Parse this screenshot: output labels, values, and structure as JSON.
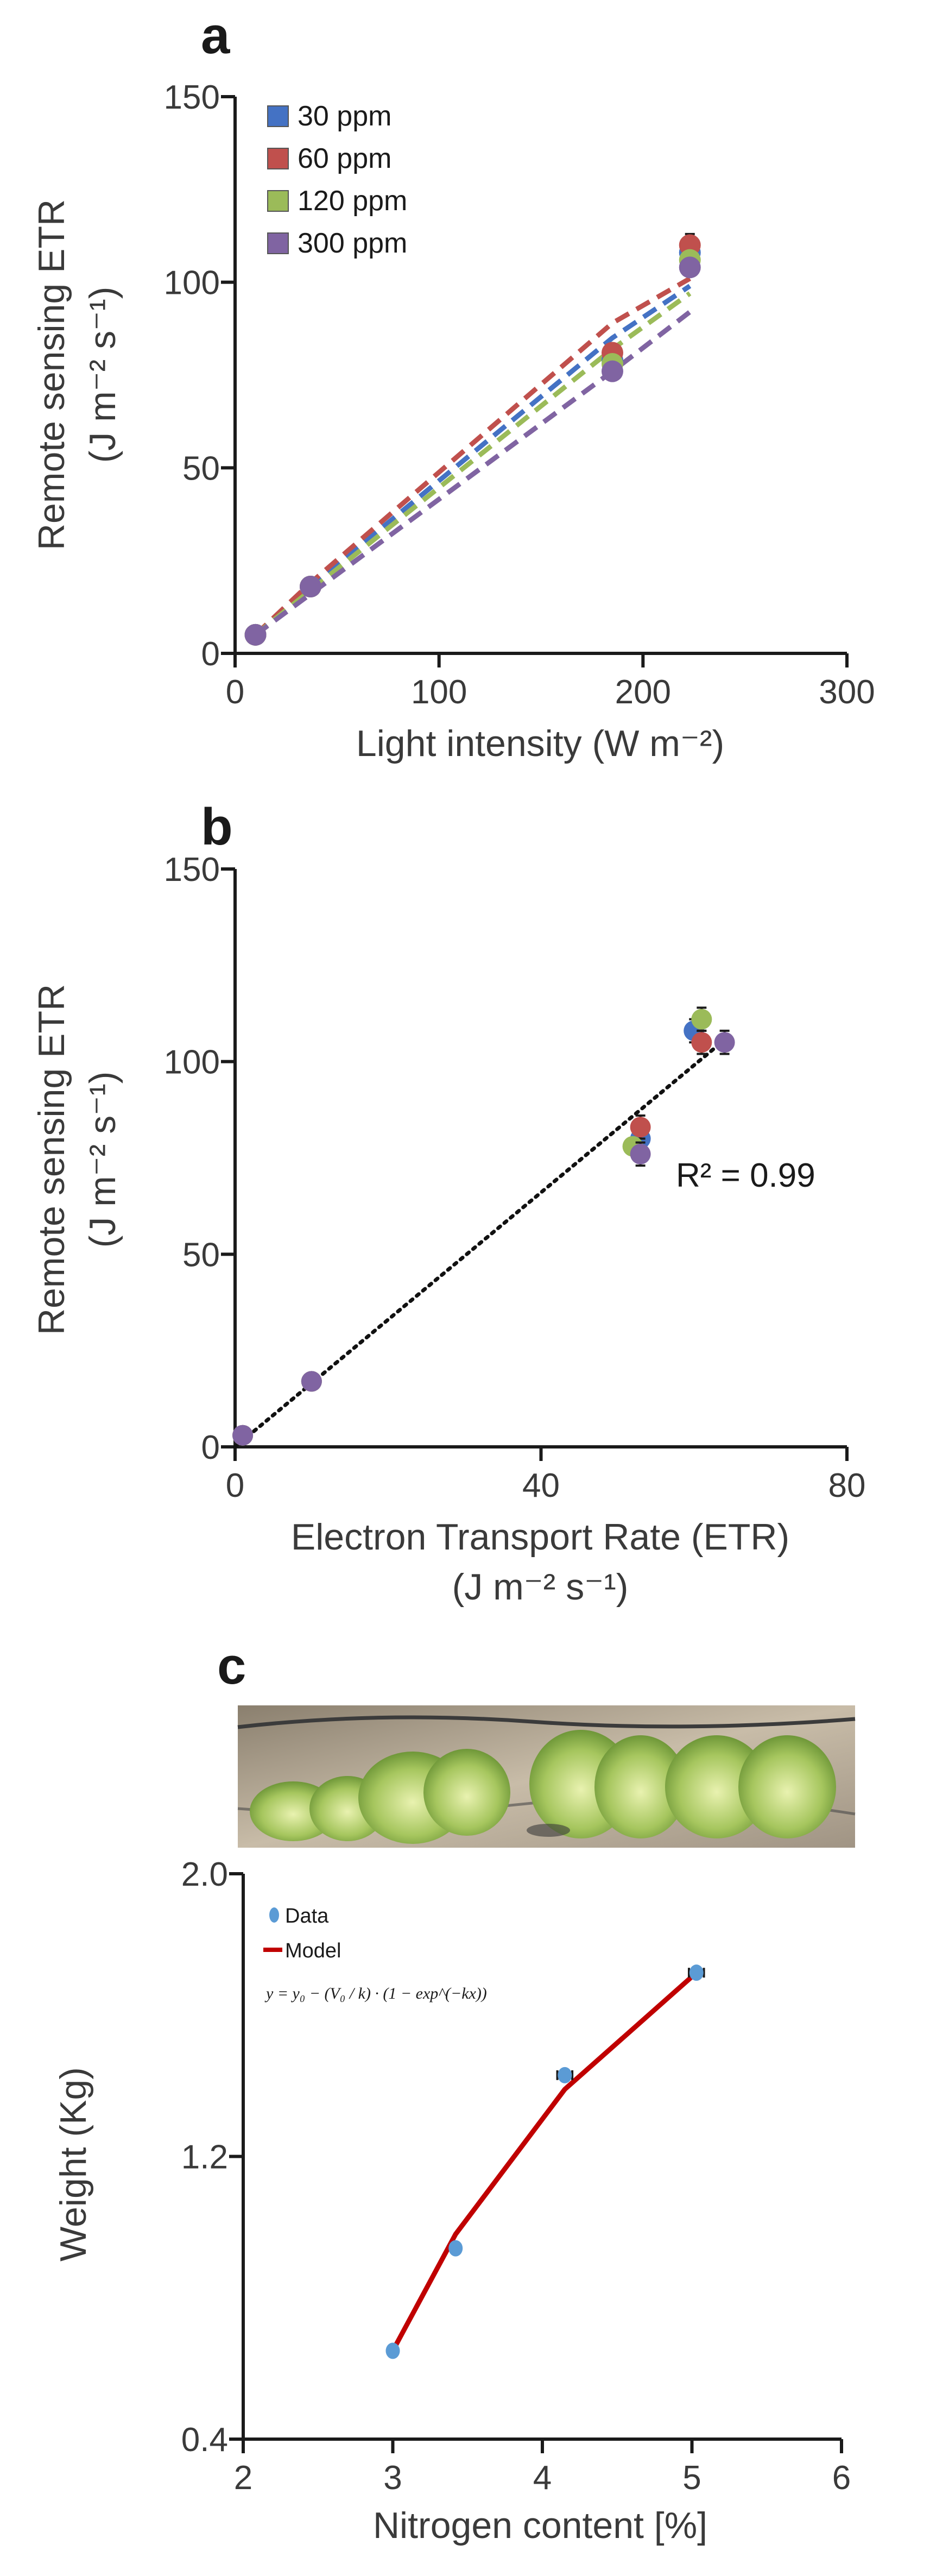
{
  "panels": {
    "a": "a",
    "b": "b",
    "c": "c"
  },
  "colors": {
    "30 ppm": "#4472c4",
    "60 ppm": "#c0504d",
    "120 ppm": "#9bbb59",
    "300 ppm": "#8064a2",
    "data": "#5b9bd5",
    "model": "#c00000"
  },
  "chart_data": [
    {
      "id": "a",
      "type": "scatter",
      "title": "",
      "xlabel": "Light intensity (W m⁻²)",
      "ylabel_line1": "Remote sensing ETR",
      "ylabel_line2": "(J m⁻² s⁻¹)",
      "xlim": [
        0,
        300
      ],
      "ylim": [
        0,
        150
      ],
      "xticks": [
        "0",
        "100",
        "200",
        "300"
      ],
      "yticks": [
        "0",
        "50",
        "100",
        "150"
      ],
      "legend": [
        "30 ppm",
        "60 ppm",
        "120 ppm",
        "300 ppm"
      ],
      "series": [
        {
          "name": "30 ppm",
          "x": [
            10,
            37,
            185,
            223
          ],
          "y": [
            5,
            18,
            79,
            108
          ],
          "yerr": [
            0,
            0,
            2,
            2
          ]
        },
        {
          "name": "60 ppm",
          "x": [
            10,
            37,
            185,
            223
          ],
          "y": [
            5,
            18,
            81,
            110
          ],
          "yerr": [
            0,
            0,
            2,
            3
          ]
        },
        {
          "name": "120 ppm",
          "x": [
            10,
            37,
            185,
            223
          ],
          "y": [
            5,
            18,
            78,
            106
          ],
          "yerr": [
            0,
            0,
            2,
            2
          ]
        },
        {
          "name": "300 ppm",
          "x": [
            10,
            37,
            185,
            223
          ],
          "y": [
            5,
            18,
            76,
            104
          ],
          "yerr": [
            0,
            0,
            2,
            2
          ]
        }
      ],
      "fits": [
        {
          "name": "30 ppm",
          "x": [
            10,
            37,
            185,
            223
          ],
          "y": [
            5,
            18,
            85,
            99
          ]
        },
        {
          "name": "60 ppm",
          "x": [
            10,
            37,
            185,
            223
          ],
          "y": [
            5,
            19,
            89,
            101
          ]
        },
        {
          "name": "120 ppm",
          "x": [
            10,
            37,
            185,
            223
          ],
          "y": [
            5,
            17,
            82,
            97
          ]
        },
        {
          "name": "300 ppm",
          "x": [
            10,
            37,
            185,
            223
          ],
          "y": [
            5,
            16,
            76,
            92
          ]
        }
      ]
    },
    {
      "id": "b",
      "type": "scatter",
      "title": "",
      "xlabel_line1": "Electron Transport Rate (ETR)",
      "xlabel_line2": "(J m⁻² s⁻¹)",
      "ylabel_line1": "Remote sensing ETR",
      "ylabel_line2": "(J m⁻² s⁻¹)",
      "xlim": [
        0,
        80
      ],
      "ylim": [
        0,
        150
      ],
      "xticks": [
        "0",
        "40",
        "80"
      ],
      "yticks": [
        "0",
        "50",
        "100",
        "150"
      ],
      "annotation": "R² = 0.99",
      "trendline": {
        "x": [
          0,
          63
        ],
        "y": [
          0,
          104
        ]
      },
      "series": [
        {
          "name": "30 ppm",
          "x": [
            1,
            10,
            53,
            60
          ],
          "y": [
            3,
            17,
            80,
            108
          ],
          "yerr": [
            0,
            0,
            3,
            3
          ],
          "xerr": [
            0,
            0,
            0,
            1
          ]
        },
        {
          "name": "60 ppm",
          "x": [
            1,
            10,
            53,
            61
          ],
          "y": [
            3,
            17,
            83,
            105
          ],
          "yerr": [
            0,
            0,
            3,
            3
          ],
          "xerr": [
            0,
            0,
            0,
            1
          ]
        },
        {
          "name": "120 ppm",
          "x": [
            1,
            10,
            52,
            61
          ],
          "y": [
            3,
            17,
            78,
            111
          ],
          "yerr": [
            0,
            0,
            2,
            3
          ],
          "xerr": [
            0,
            0,
            0,
            1
          ]
        },
        {
          "name": "300 ppm",
          "x": [
            1,
            10,
            53,
            64
          ],
          "y": [
            3,
            17,
            76,
            105
          ],
          "yerr": [
            0,
            0,
            3,
            3
          ],
          "xerr": [
            0,
            0,
            1,
            1
          ]
        }
      ]
    },
    {
      "id": "c",
      "type": "scatter",
      "title": "",
      "xlabel": "Nitrogen content [%]",
      "ylabel": "Weight (Kg)",
      "xlim": [
        2,
        6
      ],
      "ylim": [
        0.4,
        2.0
      ],
      "xticks": [
        "2",
        "3",
        "4",
        "5",
        "6"
      ],
      "yticks": [
        "0.4",
        "1.2",
        "2.0"
      ],
      "legend": [
        "Data",
        "Model"
      ],
      "equation": "y = y₀ − (V₀ / k) · (1 − exp^(−kx))",
      "data": {
        "x": [
          3.0,
          3.42,
          4.15,
          5.03
        ],
        "y": [
          0.65,
          0.94,
          1.43,
          1.72
        ],
        "xerr": [
          0,
          0,
          0.05,
          0.05
        ]
      },
      "model": {
        "x": [
          3.0,
          3.42,
          4.15,
          5.03
        ],
        "y": [
          0.65,
          0.98,
          1.39,
          1.72
        ]
      }
    }
  ]
}
